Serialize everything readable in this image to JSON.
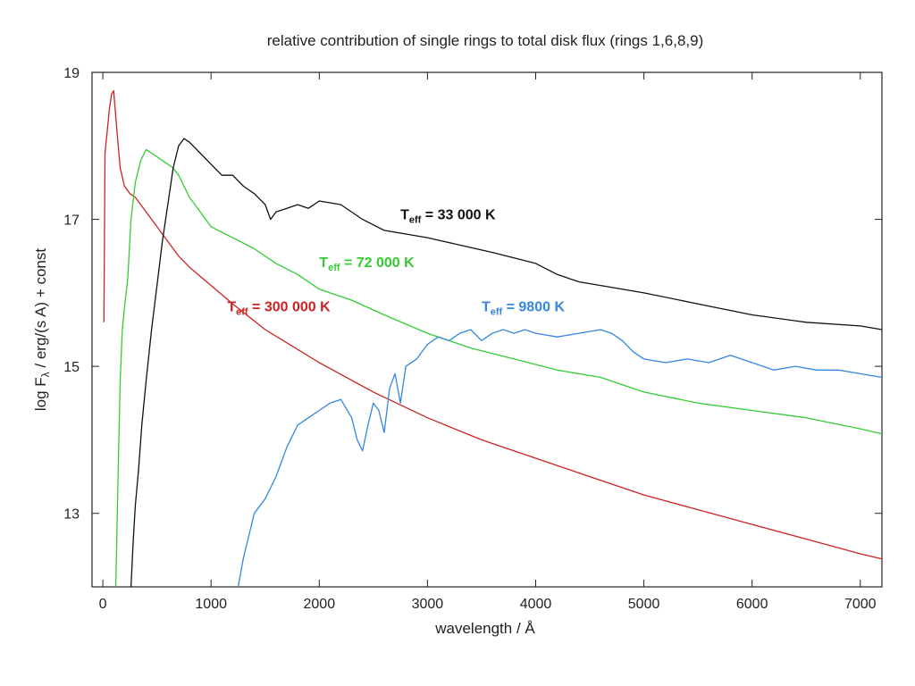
{
  "chart_data": {
    "type": "line",
    "title": "relative contribution of single rings to total disk flux (rings 1,6,8,9)",
    "xlabel": "wavelength / Å",
    "ylabel_parts": {
      "pre": "log F",
      "sub": "λ",
      "post": " / erg/(s A)  + const"
    },
    "xlim": [
      -100,
      7200
    ],
    "ylim": [
      12,
      19
    ],
    "xticks": [
      0,
      1000,
      2000,
      3000,
      4000,
      5000,
      6000,
      7000
    ],
    "yticks": [
      13,
      15,
      17,
      19
    ],
    "grid": false,
    "series": [
      {
        "label_main": "T",
        "label_sub": "eff",
        "label_rest": " = 300 000 K",
        "color": "#cc2222",
        "x": [
          10,
          20,
          40,
          60,
          80,
          100,
          130,
          160,
          200,
          250,
          300,
          400,
          500,
          600,
          700,
          800,
          1000,
          1200,
          1500,
          2000,
          2500,
          3000,
          3500,
          4000,
          4500,
          5000,
          5500,
          6000,
          6500,
          7000,
          7200
        ],
        "y": [
          15.6,
          17.9,
          18.2,
          18.5,
          18.7,
          18.75,
          18.2,
          17.7,
          17.45,
          17.35,
          17.3,
          17.1,
          16.9,
          16.7,
          16.5,
          16.35,
          16.1,
          15.85,
          15.5,
          15.05,
          14.65,
          14.3,
          14.0,
          13.75,
          13.5,
          13.25,
          13.05,
          12.85,
          12.65,
          12.45,
          12.38
        ]
      },
      {
        "label_main": "T",
        "label_sub": "eff",
        "label_rest": " = 72 000 K",
        "color": "#33cc33",
        "x": [
          120,
          140,
          160,
          180,
          200,
          230,
          260,
          300,
          350,
          400,
          450,
          500,
          550,
          600,
          650,
          700,
          750,
          800,
          900,
          1000,
          1200,
          1400,
          1600,
          1800,
          2000,
          2300,
          2600,
          3000,
          3400,
          3800,
          4200,
          4600,
          5000,
          5500,
          6000,
          6500,
          7000,
          7200
        ],
        "y": [
          12.0,
          13.5,
          14.8,
          15.5,
          15.8,
          16.2,
          17.0,
          17.5,
          17.8,
          17.95,
          17.9,
          17.85,
          17.8,
          17.75,
          17.7,
          17.6,
          17.45,
          17.3,
          17.1,
          16.9,
          16.75,
          16.6,
          16.4,
          16.25,
          16.05,
          15.9,
          15.7,
          15.45,
          15.25,
          15.1,
          14.95,
          14.85,
          14.65,
          14.5,
          14.4,
          14.3,
          14.15,
          14.08
        ]
      },
      {
        "label_main": "T",
        "label_sub": "eff",
        "label_rest": " = 33 000 K",
        "color": "#111111",
        "x": [
          260,
          280,
          300,
          330,
          360,
          400,
          450,
          500,
          550,
          600,
          650,
          700,
          750,
          800,
          900,
          1000,
          1100,
          1200,
          1300,
          1400,
          1500,
          1550,
          1600,
          1700,
          1800,
          1900,
          2000,
          2200,
          2400,
          2600,
          2800,
          3000,
          3300,
          3600,
          4000,
          4200,
          4400,
          4600,
          5000,
          5500,
          6000,
          6500,
          7000,
          7200
        ],
        "y": [
          12.0,
          12.6,
          13.1,
          13.6,
          14.2,
          14.8,
          15.5,
          16.1,
          16.7,
          17.2,
          17.7,
          18.0,
          18.1,
          18.05,
          17.9,
          17.75,
          17.6,
          17.6,
          17.45,
          17.35,
          17.2,
          17.0,
          17.1,
          17.15,
          17.2,
          17.15,
          17.25,
          17.2,
          17.0,
          16.85,
          16.8,
          16.75,
          16.65,
          16.55,
          16.4,
          16.25,
          16.15,
          16.1,
          16.0,
          15.85,
          15.7,
          15.6,
          15.55,
          15.5
        ]
      },
      {
        "label_main": "T",
        "label_sub": "eff",
        "label_rest": " = 9800 K",
        "color": "#3388dd",
        "x": [
          1250,
          1300,
          1350,
          1400,
          1500,
          1600,
          1700,
          1800,
          1900,
          2000,
          2100,
          2200,
          2300,
          2350,
          2400,
          2450,
          2500,
          2550,
          2600,
          2650,
          2700,
          2750,
          2800,
          2900,
          3000,
          3100,
          3200,
          3300,
          3400,
          3500,
          3600,
          3700,
          3800,
          3900,
          4000,
          4200,
          4400,
          4600,
          4700,
          4800,
          4900,
          5000,
          5200,
          5400,
          5600,
          5800,
          6000,
          6200,
          6400,
          6600,
          6800,
          7000,
          7200
        ],
        "y": [
          12.0,
          12.4,
          12.7,
          13.0,
          13.2,
          13.5,
          13.9,
          14.2,
          14.3,
          14.4,
          14.5,
          14.55,
          14.3,
          14.0,
          13.85,
          14.2,
          14.5,
          14.4,
          14.1,
          14.7,
          14.9,
          14.5,
          15.0,
          15.1,
          15.3,
          15.4,
          15.35,
          15.45,
          15.5,
          15.35,
          15.45,
          15.5,
          15.45,
          15.5,
          15.45,
          15.4,
          15.45,
          15.5,
          15.45,
          15.35,
          15.2,
          15.1,
          15.05,
          15.1,
          15.05,
          15.15,
          15.05,
          14.95,
          15.0,
          14.95,
          14.95,
          14.9,
          14.85
        ]
      }
    ]
  },
  "annotations": [
    {
      "series_index": 0,
      "x": 1150,
      "y": 15.75
    },
    {
      "series_index": 1,
      "x": 2000,
      "y": 16.35
    },
    {
      "series_index": 2,
      "x": 2750,
      "y": 17.0
    },
    {
      "series_index": 3,
      "x": 3500,
      "y": 15.75
    }
  ]
}
